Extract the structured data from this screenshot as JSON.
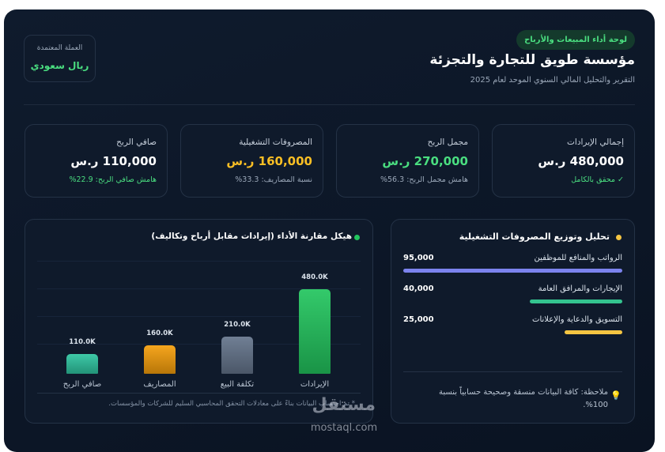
{
  "header": {
    "badge": "لوحة أداء المبيعات والأرباح",
    "title": "مؤسسة طويق للتجارة والتجزئة",
    "subtitle": "التقرير والتحليل المالي السنوي الموحد لعام 2025",
    "currency_label": "العملة المعتمدة",
    "currency_value": "ريال سعودي"
  },
  "kpis": [
    {
      "label": "إجمالي الإيرادات",
      "value": "480,000 ر.س",
      "note": "✓ محقق بالكامل"
    },
    {
      "label": "مجمل الربح",
      "value": "270,000 ر.س",
      "note": "هامش مجمل الربح: 56.3%"
    },
    {
      "label": "المصروفات التشغيلية",
      "value": "160,000 ر.س",
      "note": "نسبة المصاريف: 33.3%"
    },
    {
      "label": "صافي الربح",
      "value": "110,000 ر.س",
      "note": "هامش صافي الربح: 22.9%"
    }
  ],
  "expenses": {
    "title": "تحليل وتوزيع المصروفات التشغيلية",
    "items": [
      {
        "label": "الرواتب والمنافع للموظفين",
        "value": 95000,
        "value_label": "95,000",
        "color": "#7c83ee"
      },
      {
        "label": "الإيجارات والمرافق العامة",
        "value": 40000,
        "value_label": "40,000",
        "color": "#34c38f"
      },
      {
        "label": "التسويق والدعاية والإعلانات",
        "value": 25000,
        "value_label": "25,000",
        "color": "#f5c542"
      }
    ],
    "note": "ملاحظة: كافة البيانات منسقة وصحيحة حسابياً بنسبة 100%."
  },
  "chart_data": {
    "type": "bar",
    "title": "هيكل مقارنة الأداء (إيرادات مقابل أرباح وتكاليف)",
    "categories": [
      "الإيرادات",
      "تكلفة البيع",
      "المصاريف",
      "صافي الربح"
    ],
    "values": [
      480000,
      210000,
      160000,
      110000
    ],
    "value_labels": [
      "480.0K",
      "210.0K",
      "160.0K",
      "110.0K"
    ],
    "colors": [
      "#22c55e",
      "#64748b",
      "#f59e0b",
      "#2ec4a0"
    ],
    "footnote": "* تم احتساب البيانات بناءً على معادلات التحقق المحاسبي السليم للشركات والمؤسسات."
  },
  "watermark": {
    "logo": "مستقل",
    "url": "mostaql.com"
  }
}
